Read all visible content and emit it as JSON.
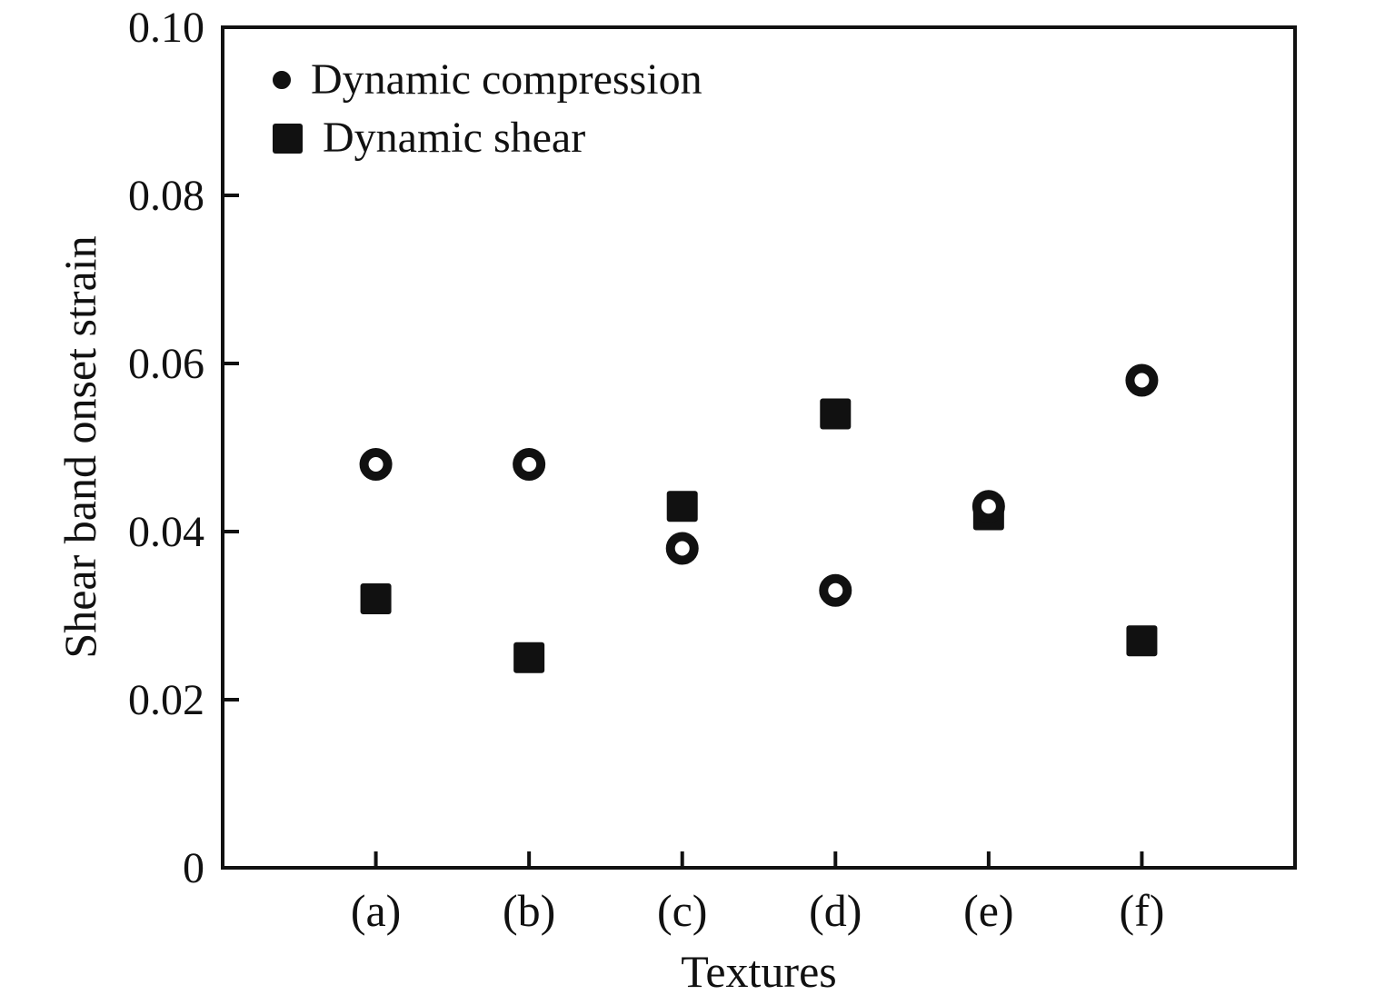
{
  "chart_data": {
    "type": "scatter",
    "title": "",
    "xlabel": "Textures",
    "ylabel": "Shear band onset strain",
    "categories": [
      "(a)",
      "(b)",
      "(c)",
      "(d)",
      "(e)",
      "(f)"
    ],
    "series": [
      {
        "name": "Dynamic compression",
        "marker": "open-circle",
        "values": [
          0.048,
          0.048,
          0.038,
          0.033,
          0.043,
          0.058
        ]
      },
      {
        "name": "Dynamic shear",
        "marker": "filled-square",
        "values": [
          0.032,
          0.025,
          0.043,
          0.054,
          0.042,
          0.027
        ]
      }
    ],
    "ylim": [
      0,
      0.1
    ],
    "yticks": [
      0,
      0.02,
      0.04,
      0.06,
      0.08,
      0.1
    ],
    "ytick_labels": [
      "0",
      "0.02",
      "0.04",
      "0.06",
      "0.08",
      "0.10"
    ],
    "grid": false,
    "legend_position": "top-left-inside"
  },
  "colors": {
    "marker": "#111111",
    "axis": "#111111",
    "background": "#ffffff"
  }
}
